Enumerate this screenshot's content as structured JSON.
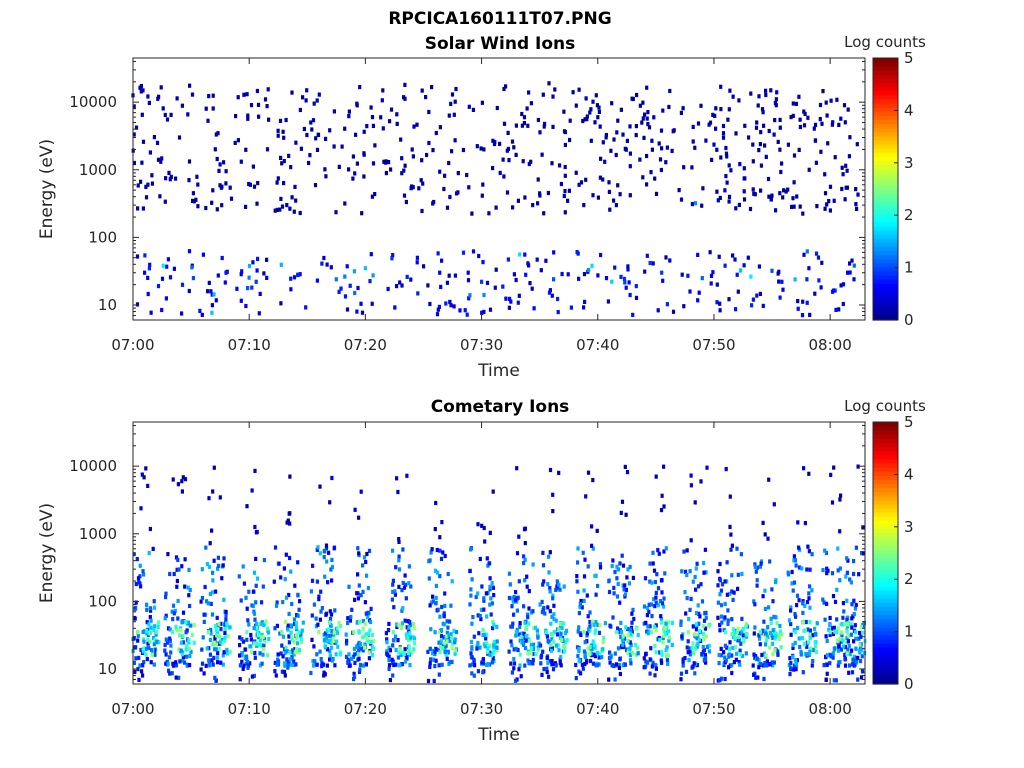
{
  "figure": {
    "title": "RPCICA160111T07.PNG"
  },
  "colormap": [
    "#00008f",
    "#0000ff",
    "#0080ff",
    "#00ffff",
    "#80ff80",
    "#ffff00",
    "#ff8000",
    "#ff0000",
    "#800000"
  ],
  "chart_data": [
    {
      "type": "heatmap",
      "title": "Solar Wind Ions",
      "xlabel": "Time",
      "ylabel": "Energy (eV)",
      "x_range": [
        "07:00",
        "08:03"
      ],
      "x_ticks": [
        "07:00",
        "07:10",
        "07:20",
        "07:30",
        "07:40",
        "07:50",
        "08:00"
      ],
      "y_scale": "log",
      "y_range": [
        6,
        45000
      ],
      "y_ticks": [
        "10",
        "100",
        "1000",
        "10000"
      ],
      "colorbar": {
        "label": "Log counts",
        "range": [
          0,
          5
        ],
        "ticks": [
          "0",
          "1",
          "2",
          "3",
          "4",
          "5"
        ]
      },
      "pattern": "sparse",
      "cells": [
        {
          "t": 0.3,
          "e": 4200,
          "c": 0.2
        },
        {
          "t": 0.8,
          "e": 6500,
          "c": 0.1
        },
        {
          "t": 1.5,
          "e": 1800,
          "c": 0.2
        },
        {
          "t": 2.2,
          "e": 12000,
          "c": 0.1
        },
        {
          "t": 3.1,
          "e": 900,
          "c": 0.2
        },
        {
          "t": 4.0,
          "e": 3000,
          "c": 0.1
        },
        {
          "t": 5.2,
          "e": 450,
          "c": 0.2
        },
        {
          "t": 6.3,
          "e": 8000,
          "c": 0.1
        },
        {
          "t": 7.5,
          "e": 1200,
          "c": 0.2
        },
        {
          "t": 8.8,
          "e": 2500,
          "c": 0.1
        },
        {
          "t": 10.1,
          "e": 600,
          "c": 0.2
        },
        {
          "t": 11.4,
          "e": 11000,
          "c": 0.1
        },
        {
          "t": 12.7,
          "e": 1500,
          "c": 0.2
        },
        {
          "t": 14.0,
          "e": 350,
          "c": 0.1
        },
        {
          "t": 15.3,
          "e": 5000,
          "c": 0.2
        },
        {
          "t": 16.6,
          "e": 800,
          "c": 0.1
        },
        {
          "t": 18.0,
          "e": 2200,
          "c": 0.2
        },
        {
          "t": 19.3,
          "e": 9000,
          "c": 0.1
        },
        {
          "t": 20.6,
          "e": 400,
          "c": 0.2
        },
        {
          "t": 22.0,
          "e": 1300,
          "c": 0.1
        },
        {
          "t": 23.4,
          "e": 18000,
          "c": 0.2
        },
        {
          "t": 24.8,
          "e": 700,
          "c": 0.1
        },
        {
          "t": 26.1,
          "e": 3500,
          "c": 0.2
        },
        {
          "t": 27.5,
          "e": 13000,
          "c": 0.1
        },
        {
          "t": 28.9,
          "e": 550,
          "c": 0.2
        },
        {
          "t": 30.2,
          "e": 2000,
          "c": 0.1
        },
        {
          "t": 31.6,
          "e": 900,
          "c": 0.2
        },
        {
          "t": 33.0,
          "e": 4500,
          "c": 0.1
        },
        {
          "t": 34.4,
          "e": 300,
          "c": 0.2
        },
        {
          "t": 35.8,
          "e": 19000,
          "c": 0.1
        },
        {
          "t": 37.2,
          "e": 1100,
          "c": 0.2
        },
        {
          "t": 38.6,
          "e": 650,
          "c": 0.1
        },
        {
          "t": 40.0,
          "e": 6000,
          "c": 0.2
        },
        {
          "t": 41.4,
          "e": 2800,
          "c": 0.1
        },
        {
          "t": 42.8,
          "e": 420,
          "c": 0.2
        },
        {
          "t": 44.2,
          "e": 1600,
          "c": 0.1
        },
        {
          "t": 45.6,
          "e": 7500,
          "c": 0.2
        },
        {
          "t": 47.0,
          "e": 500,
          "c": 0.1
        },
        {
          "t": 48.4,
          "e": 320,
          "c": 1.3
        },
        {
          "t": 49.8,
          "e": 1400,
          "c": 0.2
        },
        {
          "t": 51.2,
          "e": 5500,
          "c": 0.1
        },
        {
          "t": 52.6,
          "e": 480,
          "c": 0.2
        },
        {
          "t": 54.0,
          "e": 2400,
          "c": 0.1
        },
        {
          "t": 55.4,
          "e": 14000,
          "c": 0.2
        },
        {
          "t": 56.8,
          "e": 380,
          "c": 0.1
        },
        {
          "t": 58.2,
          "e": 1000,
          "c": 0.2
        },
        {
          "t": 59.6,
          "e": 450,
          "c": 0.1
        },
        {
          "t": 61.0,
          "e": 520,
          "c": 0.2
        },
        {
          "t": 62.4,
          "e": 430,
          "c": 0.2
        },
        {
          "t": 1.0,
          "e": 30,
          "c": 0.6
        },
        {
          "t": 2.6,
          "e": 38,
          "c": 1.8
        },
        {
          "t": 5.2,
          "e": 25,
          "c": 1.0
        },
        {
          "t": 8.0,
          "e": 30,
          "c": 0.7
        },
        {
          "t": 10.6,
          "e": 22,
          "c": 0.9
        },
        {
          "t": 14.2,
          "e": 28,
          "c": 0.8
        },
        {
          "t": 17.5,
          "e": 24,
          "c": 1.2
        },
        {
          "t": 20.0,
          "e": 35,
          "c": 1.6
        },
        {
          "t": 23.6,
          "e": 26,
          "c": 0.8
        },
        {
          "t": 26.4,
          "e": 30,
          "c": 0.6
        },
        {
          "t": 30.0,
          "e": 22,
          "c": 0.9
        },
        {
          "t": 33.8,
          "e": 28,
          "c": 0.7
        },
        {
          "t": 36.2,
          "e": 24,
          "c": 1.0
        },
        {
          "t": 39.5,
          "e": 38,
          "c": 1.7
        },
        {
          "t": 42.0,
          "e": 26,
          "c": 0.8
        },
        {
          "t": 45.5,
          "e": 30,
          "c": 0.9
        },
        {
          "t": 49.0,
          "e": 25,
          "c": 1.1
        },
        {
          "t": 52.0,
          "e": 28,
          "c": 0.7
        },
        {
          "t": 55.0,
          "e": 32,
          "c": 1.0
        },
        {
          "t": 58.0,
          "e": 24,
          "c": 0.8
        },
        {
          "t": 61.5,
          "e": 30,
          "c": 0.6
        }
      ]
    },
    {
      "type": "heatmap",
      "title": "Cometary Ions",
      "xlabel": "Time",
      "ylabel": "Energy (eV)",
      "x_range": [
        "07:00",
        "08:03"
      ],
      "x_ticks": [
        "07:00",
        "07:10",
        "07:20",
        "07:30",
        "07:40",
        "07:50",
        "08:00"
      ],
      "y_scale": "log",
      "y_range": [
        6,
        45000
      ],
      "y_ticks": [
        "10",
        "100",
        "1000",
        "10000"
      ],
      "colorbar": {
        "label": "Log counts",
        "range": [
          0,
          5
        ],
        "ticks": [
          "0",
          "1",
          "2",
          "3",
          "4",
          "5"
        ]
      },
      "pattern": "bursts",
      "burst_times": [
        0.4,
        3.4,
        6.5,
        9.8,
        12.8,
        16.0,
        19.0,
        22.4,
        26.0,
        29.6,
        33.0,
        35.6,
        38.8,
        41.6,
        44.6,
        47.8,
        51.0,
        54.0,
        57.0,
        60.0,
        62.2
      ],
      "cells": [
        {
          "t": 0.4,
          "e": 35,
          "c": 2.4
        },
        {
          "t": 3.4,
          "e": 35,
          "c": 2.2
        },
        {
          "t": 6.5,
          "e": 35,
          "c": 2.5
        },
        {
          "t": 9.8,
          "e": 35,
          "c": 2.3
        },
        {
          "t": 12.8,
          "e": 35,
          "c": 2.4
        },
        {
          "t": 16.0,
          "e": 35,
          "c": 2.6
        },
        {
          "t": 19.0,
          "e": 35,
          "c": 2.5
        },
        {
          "t": 22.4,
          "e": 35,
          "c": 2.3
        },
        {
          "t": 26.0,
          "e": 35,
          "c": 1.4
        },
        {
          "t": 29.6,
          "e": 20,
          "c": 0.8
        },
        {
          "t": 33.0,
          "e": 35,
          "c": 1.6
        },
        {
          "t": 35.6,
          "e": 35,
          "c": 2.0
        },
        {
          "t": 38.8,
          "e": 35,
          "c": 2.4
        },
        {
          "t": 41.6,
          "e": 35,
          "c": 2.3
        },
        {
          "t": 44.6,
          "e": 35,
          "c": 2.2
        },
        {
          "t": 47.8,
          "e": 35,
          "c": 2.5
        },
        {
          "t": 51.0,
          "e": 35,
          "c": 2.2
        },
        {
          "t": 54.0,
          "e": 35,
          "c": 2.1
        },
        {
          "t": 57.0,
          "e": 35,
          "c": 2.0
        },
        {
          "t": 60.0,
          "e": 35,
          "c": 2.2
        },
        {
          "t": 62.2,
          "e": 35,
          "c": 1.8
        },
        {
          "t": 0.8,
          "e": 7500,
          "c": 0.2
        },
        {
          "t": 4.2,
          "e": 6000,
          "c": 0.2
        },
        {
          "t": 7.0,
          "e": 9500,
          "c": 0.1
        },
        {
          "t": 10.5,
          "e": 8500,
          "c": 0.2
        },
        {
          "t": 13.5,
          "e": 7000,
          "c": 0.1
        },
        {
          "t": 31.0,
          "e": 4200,
          "c": 0.2
        },
        {
          "t": 39.2,
          "e": 8000,
          "c": 0.3
        },
        {
          "t": 49.4,
          "e": 9500,
          "c": 0.4
        },
        {
          "t": 60.2,
          "e": 2900,
          "c": 0.2
        }
      ]
    }
  ]
}
